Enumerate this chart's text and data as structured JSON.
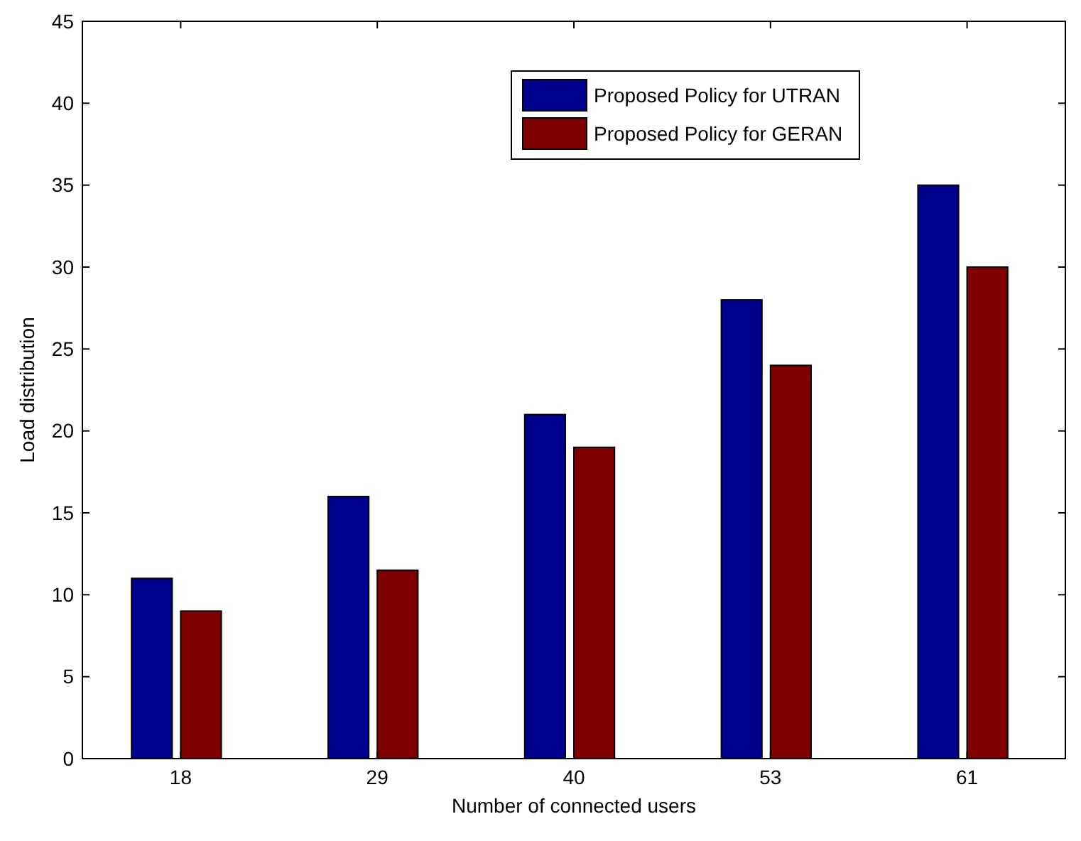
{
  "chart_data": {
    "type": "bar",
    "xlabel": "Number of connected users",
    "ylabel": "Load distribution",
    "categories": [
      "18",
      "29",
      "40",
      "53",
      "61"
    ],
    "series": [
      {
        "name": "Proposed Policy for UTRAN",
        "color": "#00008f",
        "values": [
          11,
          16,
          21,
          28,
          35
        ]
      },
      {
        "name": "Proposed Policy for GERAN",
        "color": "#800000",
        "values": [
          9,
          11.5,
          19,
          24,
          30
        ]
      }
    ],
    "ylim": [
      0,
      45
    ],
    "yticks": [
      0,
      5,
      10,
      15,
      20,
      25,
      30,
      35,
      40,
      45
    ],
    "grid": false,
    "legend": "top right"
  }
}
